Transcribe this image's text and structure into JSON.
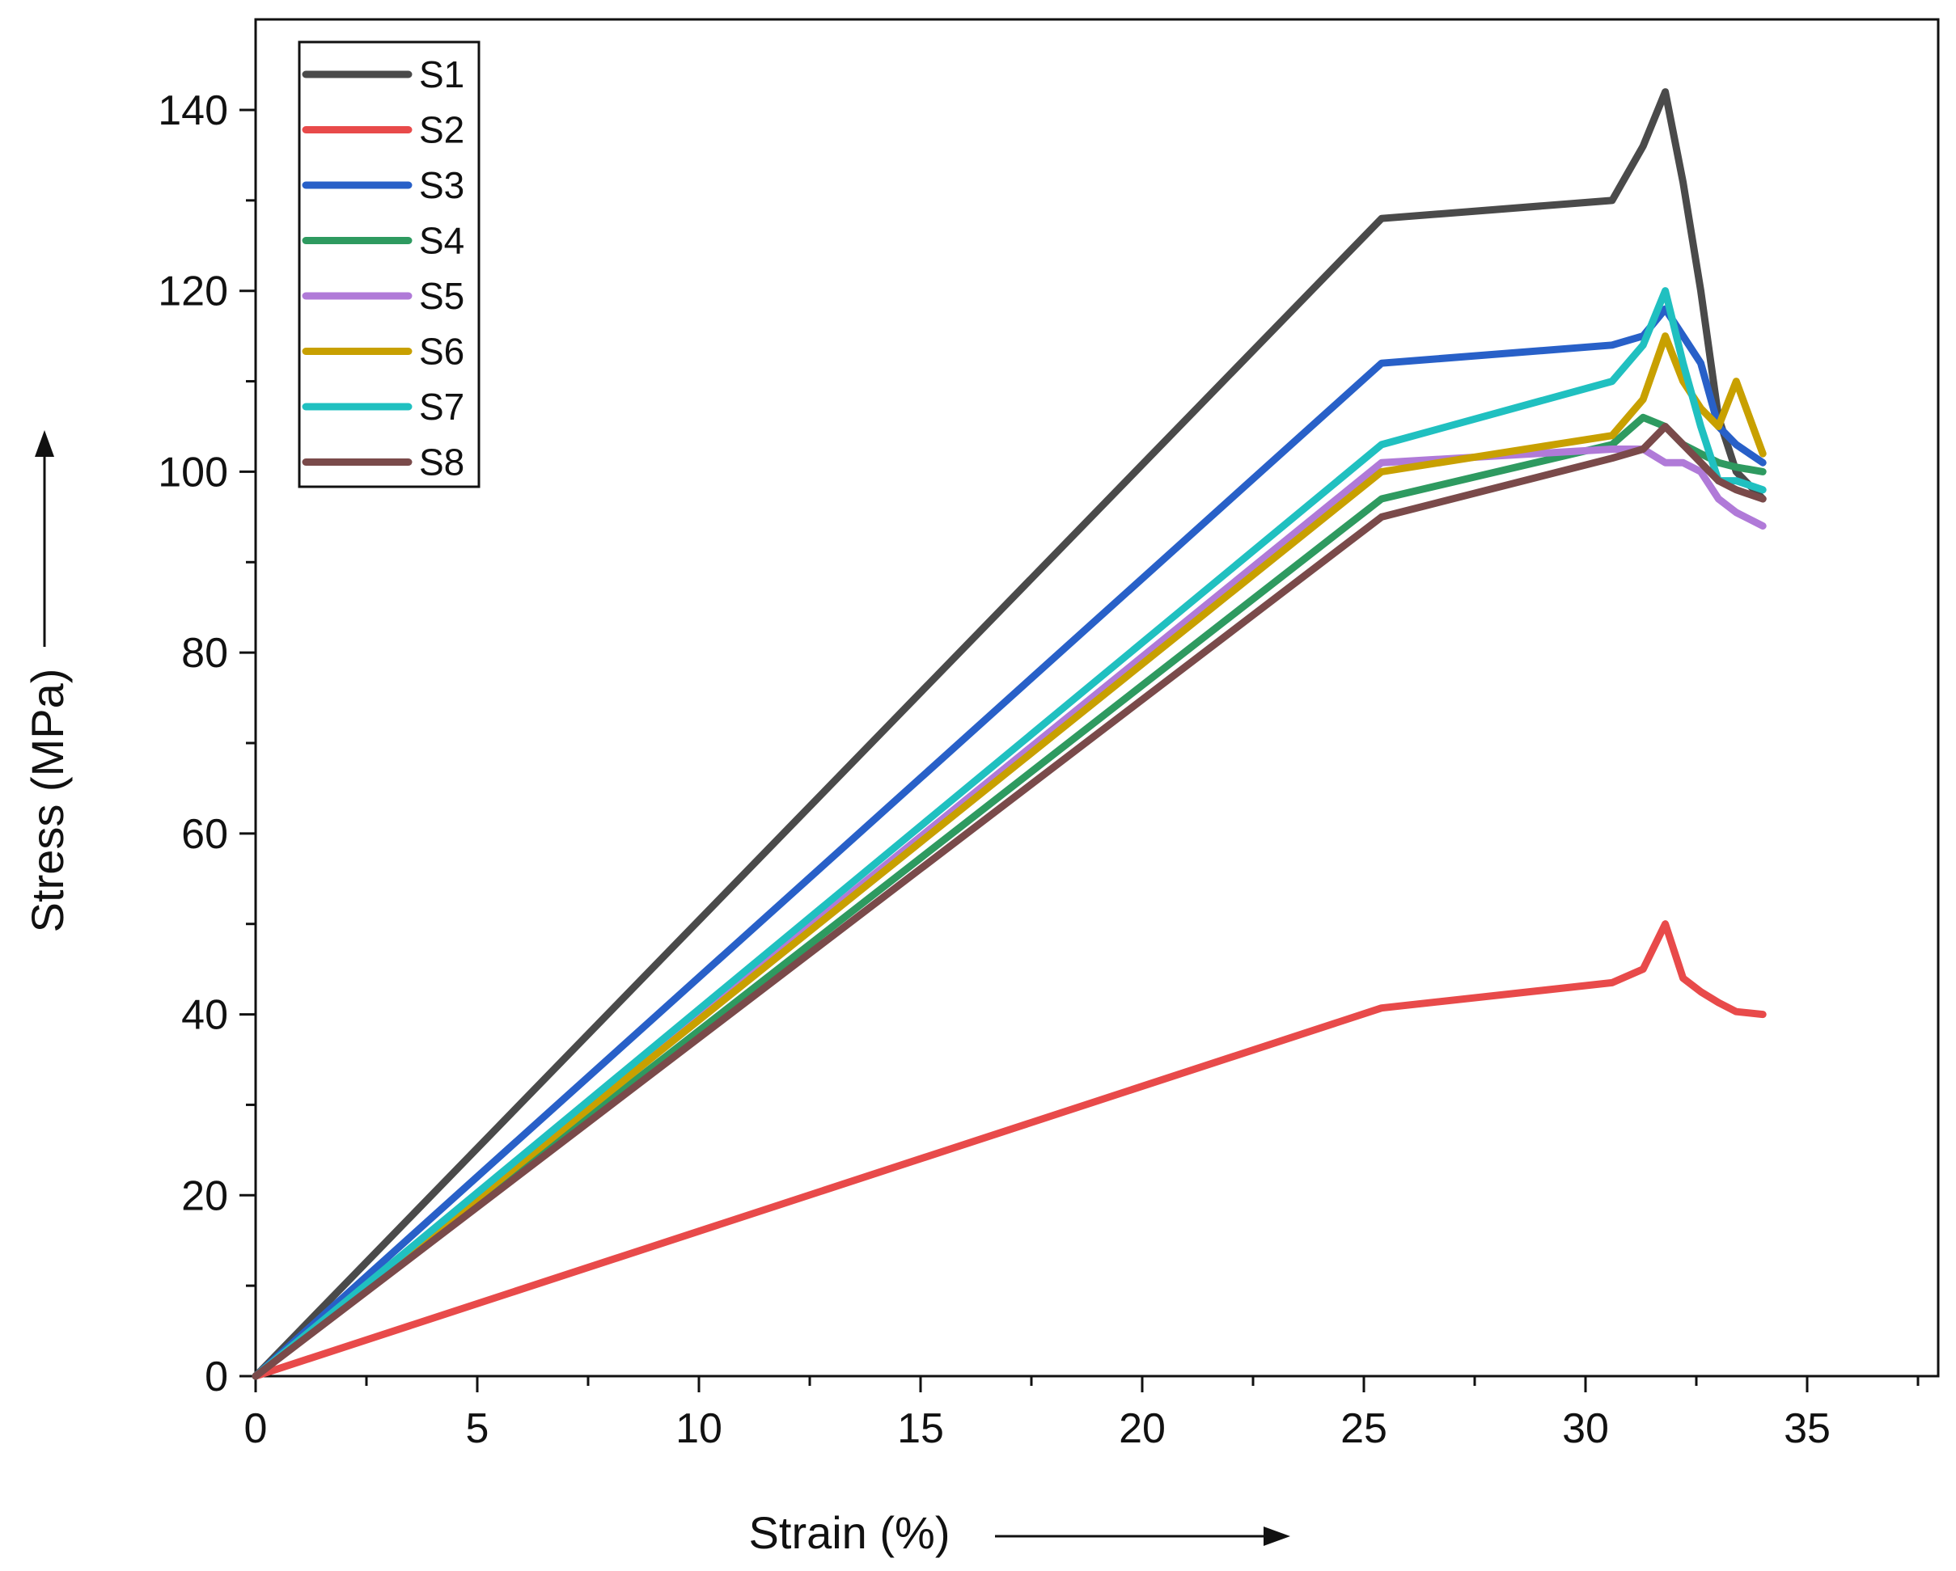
{
  "chart_data": {
    "type": "line",
    "title": "",
    "xlabel": "Strain (%)",
    "ylabel": "Stress (MPa)",
    "xlim": [
      0,
      38
    ],
    "ylim": [
      0,
      150
    ],
    "xticks": [
      0,
      5,
      10,
      15,
      20,
      25,
      30,
      35
    ],
    "yticks": [
      0,
      20,
      40,
      60,
      80,
      100,
      120,
      140
    ],
    "grid": false,
    "legend": "top-left",
    "series": [
      {
        "name": "S1",
        "color": "#4a4a4a",
        "x": [
          0,
          25.4,
          30.6,
          31.3,
          31.8,
          32.2,
          32.6,
          33.0,
          33.4,
          34.0
        ],
        "y": [
          0,
          128,
          130,
          136,
          142,
          132,
          120,
          106,
          100,
          97
        ]
      },
      {
        "name": "S2",
        "color": "#e84a4a",
        "x": [
          0,
          25.4,
          30.6,
          31.3,
          31.8,
          32.2,
          32.6,
          33.0,
          33.4,
          34.0
        ],
        "y": [
          0,
          40.7,
          43.5,
          45,
          50,
          44,
          42.5,
          41.3,
          40.3,
          40
        ]
      },
      {
        "name": "S3",
        "color": "#2860c8",
        "x": [
          0,
          25.4,
          30.6,
          31.3,
          31.8,
          32.2,
          32.6,
          33.0,
          33.4,
          34.0
        ],
        "y": [
          0,
          112,
          114,
          115,
          118,
          115,
          112,
          105,
          103,
          101
        ]
      },
      {
        "name": "S4",
        "color": "#2e9a60",
        "x": [
          0,
          25.4,
          30.6,
          31.3,
          31.8,
          32.2,
          32.6,
          33.0,
          33.4,
          34.0
        ],
        "y": [
          0,
          97,
          103,
          106,
          105,
          103,
          102,
          101,
          100.5,
          100
        ]
      },
      {
        "name": "S5",
        "color": "#b07ad8",
        "x": [
          0,
          25.4,
          30.6,
          31.3,
          31.8,
          32.2,
          32.6,
          33.0,
          33.4,
          34.0
        ],
        "y": [
          0,
          101,
          102.5,
          102.5,
          101,
          101,
          100,
          97,
          95.5,
          94
        ]
      },
      {
        "name": "S6",
        "color": "#c8a000",
        "x": [
          0,
          25.4,
          30.6,
          31.3,
          31.8,
          32.2,
          32.6,
          33.0,
          33.4,
          34.0
        ],
        "y": [
          0,
          100,
          104,
          108,
          115,
          110,
          107,
          105,
          110,
          102
        ]
      },
      {
        "name": "S7",
        "color": "#20c0c0",
        "x": [
          0,
          25.4,
          30.6,
          31.3,
          31.8,
          32.2,
          32.6,
          33.0,
          33.4,
          34.0
        ],
        "y": [
          0,
          103,
          110,
          114,
          120,
          112,
          105,
          99,
          99,
          98
        ]
      },
      {
        "name": "S8",
        "color": "#7a4a4a",
        "x": [
          0,
          25.4,
          30.6,
          31.3,
          31.8,
          32.2,
          32.6,
          33.0,
          33.4,
          34.0
        ],
        "y": [
          0,
          95,
          101.5,
          102.5,
          105,
          103,
          101,
          99,
          98,
          97
        ]
      }
    ]
  }
}
